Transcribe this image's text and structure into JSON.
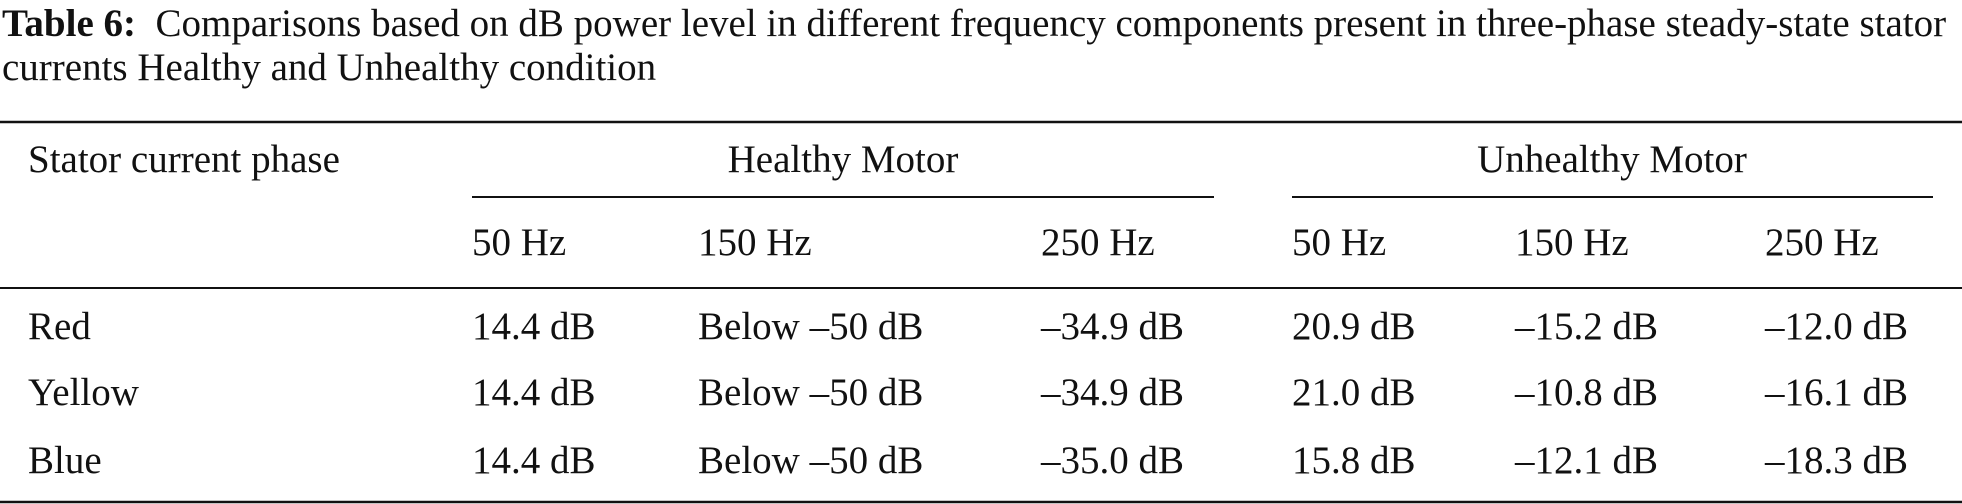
{
  "caption": {
    "label": "Table 6:",
    "text": "Comparisons based on dB power level in different frequency components present in three-phase steady-state stator currents Healthy and Unhealthy condition"
  },
  "table": {
    "row_header": "Stator current phase",
    "groups": [
      "Healthy Motor",
      "Unhealthy Motor"
    ],
    "columns": [
      "50 Hz",
      "150 Hz",
      "250 Hz",
      "50 Hz",
      "150 Hz",
      "250 Hz"
    ],
    "rows": [
      [
        "Red",
        "14.4 dB",
        "Below –50 dB",
        "–34.9 dB",
        "20.9 dB",
        "–15.2 dB",
        "–12.0 dB"
      ],
      [
        "Yellow",
        "14.4 dB",
        "Below –50 dB",
        "–34.9 dB",
        "21.0 dB",
        "–10.8 dB",
        "–16.1 dB"
      ],
      [
        "Blue",
        "14.4 dB",
        "Below –50 dB",
        "–35.0 dB",
        "15.8 dB",
        "–12.1 dB",
        "–18.3 dB"
      ]
    ]
  }
}
